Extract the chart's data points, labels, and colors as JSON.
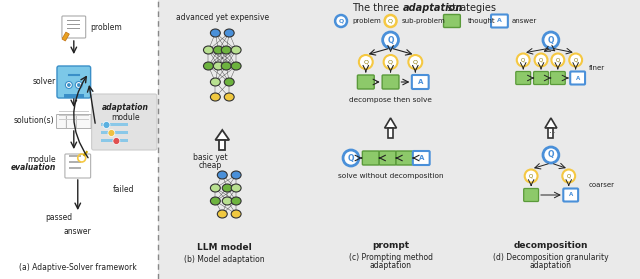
{
  "title_part1": "The three ",
  "title_italic": "adaptation",
  "title_part2": " strategies",
  "panel_a_caption": "(a) Adaptive-Solver framework",
  "panel_b_caption": "(b) Model adaptation",
  "panel_c_caption_line1": "(c) Prompting method",
  "panel_c_caption_line2": "adaptation",
  "panel_d_caption_line1": "(d) Decomposition granularity",
  "panel_d_caption_line2": "adaptation",
  "white": "#ffffff",
  "grey_bg": "#eaeaea",
  "node_blue": "#4a90d9",
  "node_green_light": "#b8e090",
  "node_green_mid": "#6db33f",
  "node_green_dark": "#4a8c2a",
  "node_yellow": "#f0c840",
  "thought_green": "#8dc96a",
  "thought_green_ec": "#5a9a3a",
  "subproblem_yellow": "#f5c842",
  "problem_blue": "#4a90d9",
  "answer_blue": "#4a90d9",
  "arrow_dark": "#222222",
  "text_dark": "#222222",
  "divider_color": "#888888"
}
